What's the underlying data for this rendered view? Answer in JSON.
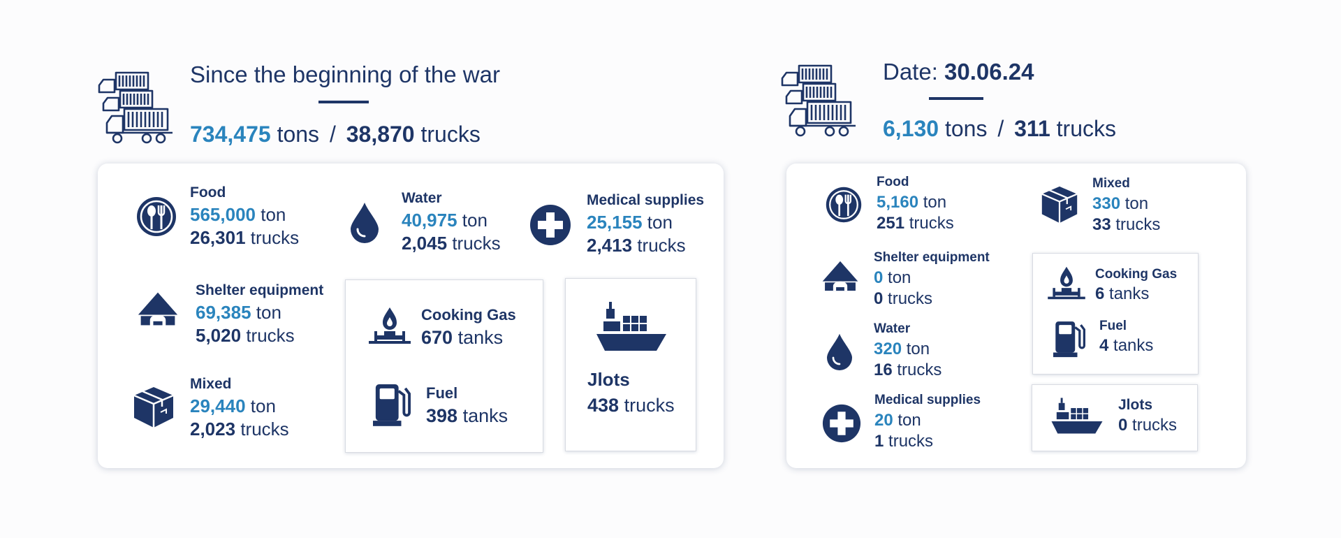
{
  "left": {
    "title": "Since the beginning of the war",
    "summary": {
      "tons_value": "734,475",
      "tons_unit": "tons",
      "sep": "/",
      "trucks_value": "38,870",
      "trucks_unit": "trucks"
    },
    "food": {
      "label": "Food",
      "ton_value": "565,000",
      "ton_unit": "ton",
      "trucks_value": "26,301",
      "trucks_unit": "trucks"
    },
    "water": {
      "label": "Water",
      "ton_value": "40,975",
      "ton_unit": "ton",
      "trucks_value": "2,045",
      "trucks_unit": "trucks"
    },
    "medical": {
      "label": "Medical supplies",
      "ton_value": "25,155",
      "ton_unit": "ton",
      "trucks_value": "2,413",
      "trucks_unit": "trucks"
    },
    "shelter": {
      "label": "Shelter equipment",
      "ton_value": "69,385",
      "ton_unit": "ton",
      "trucks_value": "5,020",
      "trucks_unit": "trucks"
    },
    "mixed": {
      "label": "Mixed",
      "ton_value": "29,440",
      "ton_unit": "ton",
      "trucks_value": "2,023",
      "trucks_unit": "trucks"
    },
    "cooking_gas": {
      "label": "Cooking Gas",
      "value": "670",
      "unit": "tanks"
    },
    "fuel": {
      "label": "Fuel",
      "value": "398",
      "unit": "tanks"
    },
    "jlots": {
      "label": "Jlots",
      "value": "438",
      "unit": "trucks"
    }
  },
  "right": {
    "title_prefix": "Date:",
    "title_date": "30.06.24",
    "summary": {
      "tons_value": "6,130",
      "tons_unit": "tons",
      "sep": "/",
      "trucks_value": "311",
      "trucks_unit": "trucks"
    },
    "food": {
      "label": "Food",
      "ton_value": "5,160",
      "ton_unit": "ton",
      "trucks_value": "251",
      "trucks_unit": "trucks"
    },
    "mixed": {
      "label": "Mixed",
      "ton_value": "330",
      "ton_unit": "ton",
      "trucks_value": "33",
      "trucks_unit": "trucks"
    },
    "shelter": {
      "label": "Shelter equipment",
      "ton_value": "0",
      "ton_unit": "ton",
      "trucks_value": "0",
      "trucks_unit": "trucks"
    },
    "water": {
      "label": "Water",
      "ton_value": "320",
      "ton_unit": "ton",
      "trucks_value": "16",
      "trucks_unit": "trucks"
    },
    "medical": {
      "label": "Medical supplies",
      "ton_value": "20",
      "ton_unit": "ton",
      "trucks_value": "1",
      "trucks_unit": "trucks"
    },
    "cooking_gas": {
      "label": "Cooking Gas",
      "value": "6",
      "unit": "tanks"
    },
    "fuel": {
      "label": "Fuel",
      "value": "4",
      "unit": "tanks"
    },
    "jlots": {
      "label": "Jlots",
      "value": "0",
      "unit": "trucks"
    }
  },
  "colors": {
    "navy": "#1e3566",
    "accent": "#2a84bd"
  },
  "icons": [
    "trucks-icon",
    "food-icon",
    "water-icon",
    "medical-icon",
    "shelter-icon",
    "mixed-icon",
    "cooking-gas-icon",
    "fuel-icon",
    "ship-icon"
  ]
}
